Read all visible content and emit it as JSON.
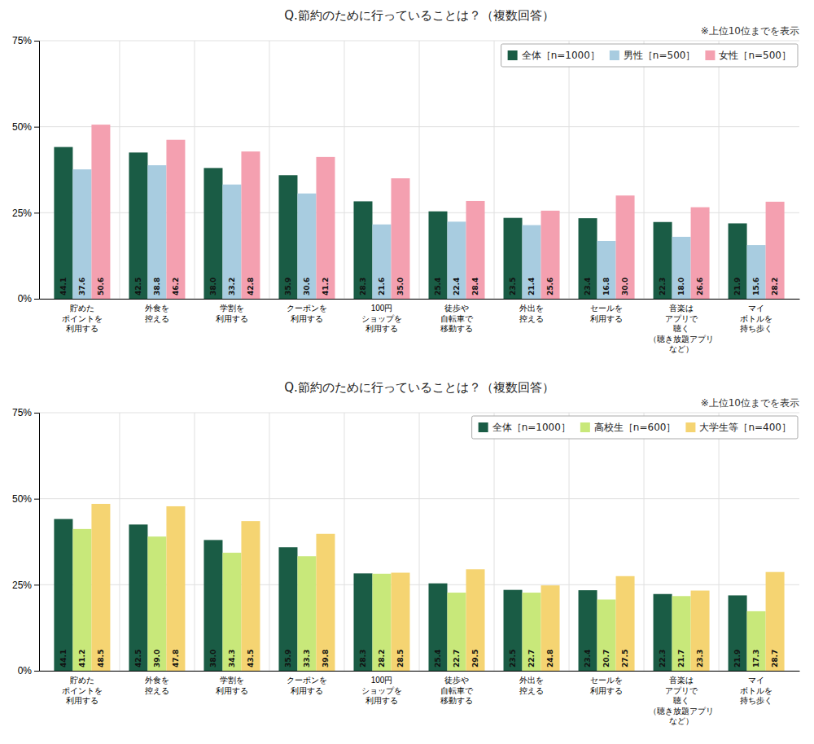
{
  "chart_data": [
    {
      "type": "bar",
      "title": "Q.節約のために行っていることは？（複数回答）",
      "annotations": [
        "※上位10位までを表示"
      ],
      "categories": [
        "貯めた\nポイントを\n利用する",
        "外食を\n控える",
        "学割を\n利用する",
        "クーポンを\n利用する",
        "100円\nショップを\n利用する",
        "徒歩や\n自転車で\n移動する",
        "外出を\n控える",
        "セールを\n利用する",
        "音楽は\nアプリで\n聴く\n（聴き放題アプリ\nなど）",
        "マイ\nボトルを\n持ち歩く"
      ],
      "series": [
        {
          "name": "全体［n=1000］",
          "color": "#1a5c45",
          "values": [
            44.1,
            42.5,
            38.0,
            35.9,
            28.3,
            25.4,
            23.5,
            23.4,
            22.3,
            21.9
          ],
          "value_labels": [
            "44.1",
            "42.5",
            "38.0",
            "35.9",
            "28.3",
            "25.4",
            "23.5",
            "23.4",
            "22.3",
            "21.9"
          ]
        },
        {
          "name": "男性［n=500］",
          "color": "#a8cce0",
          "values": [
            37.6,
            38.8,
            33.2,
            30.6,
            21.6,
            22.4,
            21.4,
            16.8,
            18.0,
            15.6
          ],
          "value_labels": [
            "37.6",
            "38.8",
            "33.2",
            "30.6",
            "21.6",
            "22.4",
            "21.4",
            "16.8",
            "18.0",
            "15.6"
          ]
        },
        {
          "name": "女性［n=500］",
          "color": "#f4a0b0",
          "values": [
            50.6,
            46.2,
            42.8,
            41.2,
            35.0,
            28.4,
            25.6,
            30.0,
            26.6,
            28.2
          ],
          "value_labels": [
            "50.6",
            "46.2",
            "42.8",
            "41.2",
            "35.0",
            "28.4",
            "25.6",
            "30.0",
            "26.6",
            "28.2"
          ]
        }
      ],
      "ylim": [
        0,
        75
      ],
      "yticks": [
        {
          "value": 0,
          "label": "0%"
        },
        {
          "value": 25,
          "label": "25%"
        },
        {
          "value": 50,
          "label": "50%"
        },
        {
          "value": 75,
          "label": "75%"
        }
      ],
      "grid": true,
      "legend": "upper right",
      "data_labels": true
    },
    {
      "type": "bar",
      "title": "Q.節約のために行っていることは？（複数回答）",
      "annotations": [
        "※上位10位までを表示"
      ],
      "categories": [
        "貯めた\nポイントを\n利用する",
        "外食を\n控える",
        "学割を\n利用する",
        "クーポンを\n利用する",
        "100円\nショップを\n利用する",
        "徒歩や\n自転車で\n移動する",
        "外出を\n控える",
        "セールを\n利用する",
        "音楽は\nアプリで\n聴く\n（聴き放題アプリ\nなど）",
        "マイ\nボトルを\n持ち歩く"
      ],
      "series": [
        {
          "name": "全体［n=1000］",
          "color": "#1a5c45",
          "values": [
            44.1,
            42.5,
            38.0,
            35.9,
            28.3,
            25.4,
            23.5,
            23.4,
            22.3,
            21.9
          ],
          "value_labels": [
            "44.1",
            "42.5",
            "38.0",
            "35.9",
            "28.3",
            "25.4",
            "23.5",
            "23.4",
            "22.3",
            "21.9"
          ]
        },
        {
          "name": "高校生［n=600］",
          "color": "#c8e87a",
          "values": [
            41.2,
            39.0,
            34.3,
            33.3,
            28.2,
            22.7,
            22.7,
            20.7,
            21.7,
            17.3
          ],
          "value_labels": [
            "41.2",
            "39.0",
            "34.3",
            "33.3",
            "28.2",
            "22.7",
            "22.7",
            "20.7",
            "21.7",
            "17.3"
          ]
        },
        {
          "name": "大学生等［n=400］",
          "color": "#f5d472",
          "values": [
            48.5,
            47.8,
            43.5,
            39.8,
            28.5,
            29.5,
            24.8,
            27.5,
            23.3,
            28.7
          ],
          "value_labels": [
            "48.5",
            "47.8",
            "43.5",
            "39.8",
            "28.5",
            "29.5",
            "24.8",
            "27.5",
            "23.3",
            "28.7"
          ]
        }
      ],
      "ylim": [
        0,
        75
      ],
      "yticks": [
        {
          "value": 0,
          "label": "0%"
        },
        {
          "value": 25,
          "label": "25%"
        },
        {
          "value": 50,
          "label": "50%"
        },
        {
          "value": 75,
          "label": "75%"
        }
      ],
      "grid": true,
      "legend": "upper right",
      "data_labels": true
    }
  ]
}
